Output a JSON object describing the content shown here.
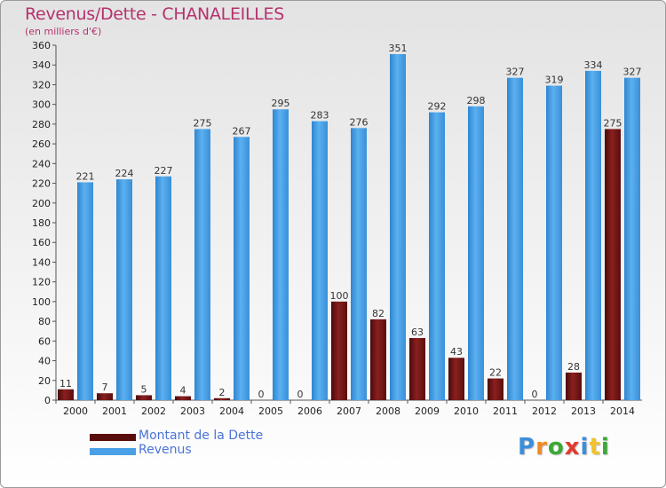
{
  "chart_data": {
    "type": "bar",
    "title": "Revenus/Dette - CHANALEILLES",
    "subtitle": "(en milliers d'€)",
    "categories": [
      "2000",
      "2001",
      "2002",
      "2003",
      "2004",
      "2005",
      "2006",
      "2007",
      "2008",
      "2009",
      "2010",
      "2011",
      "2012",
      "2013",
      "2014"
    ],
    "series": [
      {
        "name": "Montant de la Dette",
        "color": "#7a1515",
        "values": [
          11,
          7,
          5,
          4,
          2,
          0,
          0,
          100,
          82,
          63,
          43,
          22,
          0,
          28,
          275
        ]
      },
      {
        "name": "Revenus",
        "color": "#4aa0e6",
        "values": [
          221,
          224,
          227,
          275,
          267,
          295,
          283,
          276,
          351,
          292,
          298,
          327,
          319,
          334,
          327
        ]
      }
    ],
    "ylim": [
      0,
      360
    ],
    "ytick_step": 20,
    "grid": false,
    "legend": "bottom-left"
  },
  "legend": {
    "dette_label": "Montant de la Dette",
    "revenus_label": "Revenus"
  },
  "logo": {
    "letters": [
      "P",
      "r",
      "o",
      "x",
      "i",
      "t",
      "i"
    ],
    "colors": [
      "#3b8fd9",
      "#f08a24",
      "#3aa935",
      "#e23b2e",
      "#3b8fd9",
      "#f2c12e",
      "#3aa935"
    ]
  }
}
